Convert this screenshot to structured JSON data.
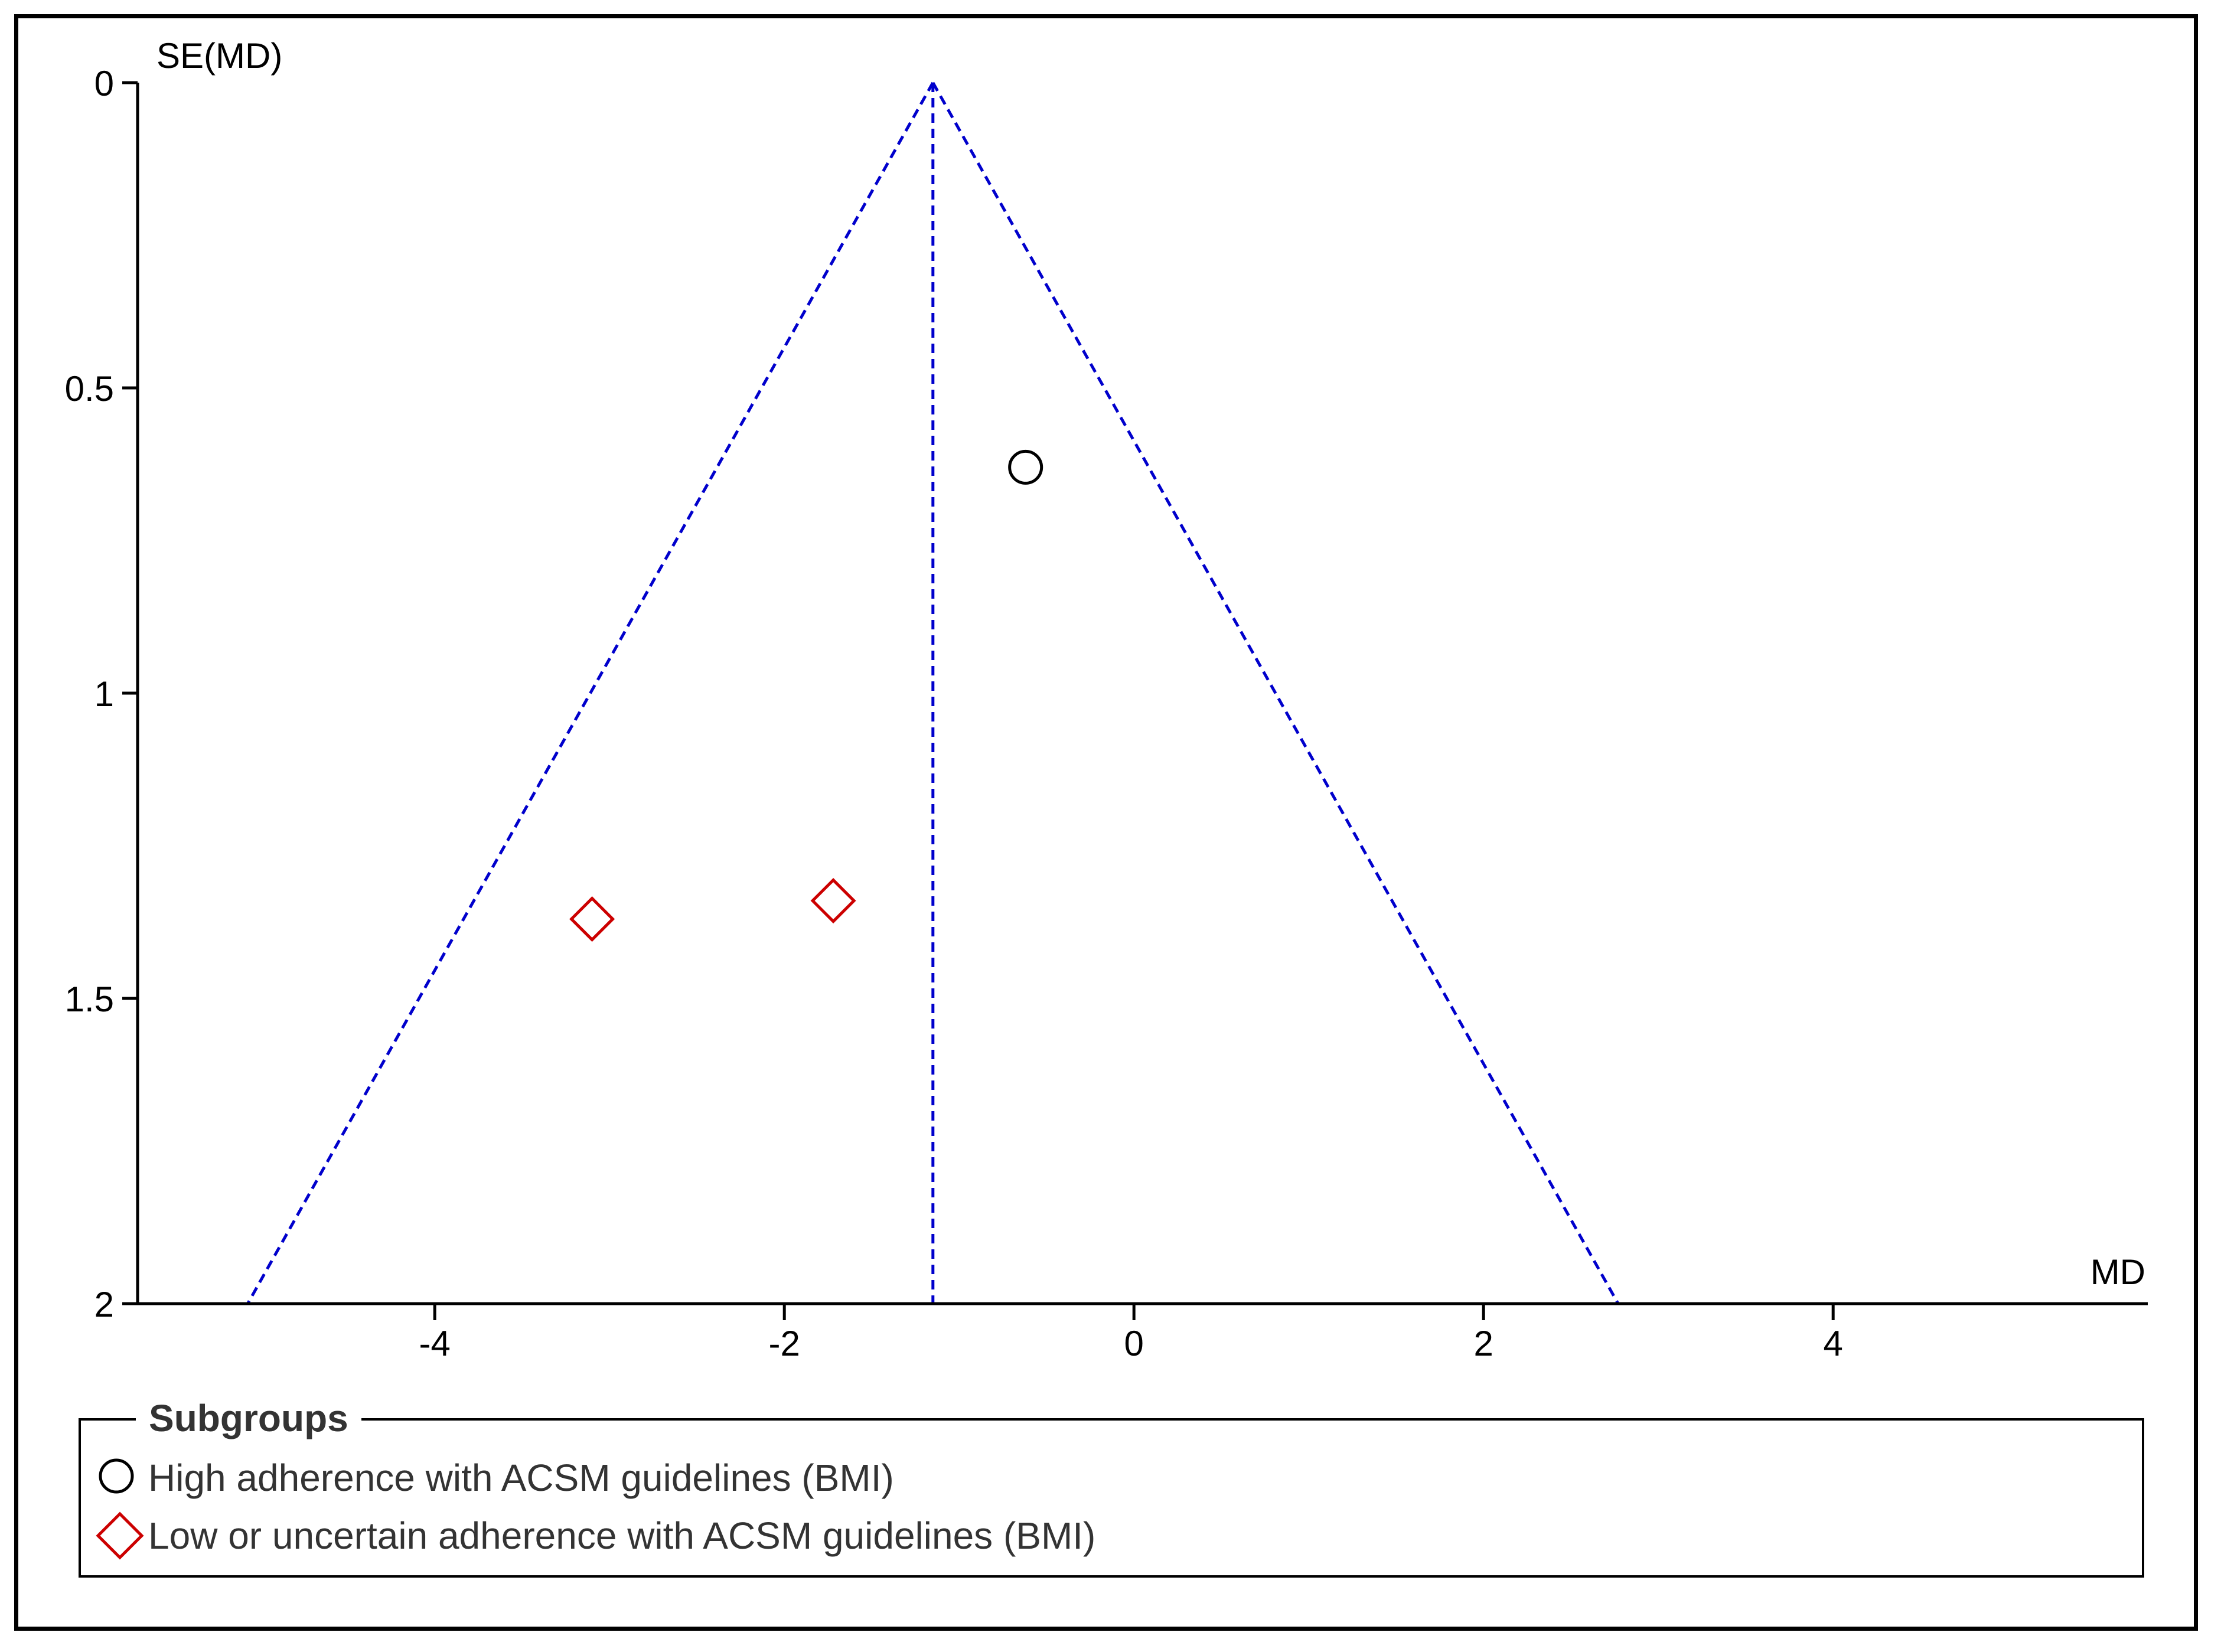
{
  "chart_data": {
    "type": "scatter",
    "title": "",
    "xlabel": "MD",
    "ylabel": "SE(MD)",
    "xlim": [
      -5.7,
      5.8
    ],
    "ylim": [
      0,
      2
    ],
    "y_inverted": true,
    "xticks": [
      -4,
      -2,
      0,
      2,
      4
    ],
    "yticks": [
      0,
      0.5,
      1,
      1.5,
      2
    ],
    "xtick_labels": [
      "-4",
      "-2",
      "0",
      "2",
      "4"
    ],
    "ytick_labels": [
      "0",
      "0.5",
      "1",
      "1.5",
      "2"
    ],
    "grid": false,
    "pooled_estimate": -1.15,
    "funnel_se_max": 2,
    "funnel_color": "#0000cc",
    "legend_title": "Subgroups",
    "legend_placement": "bottom",
    "series": [
      {
        "name": "High adherence with ACSM guidelines (BMI)",
        "marker": "circle",
        "color": "#000000",
        "points": [
          {
            "x": -0.62,
            "y": 0.63
          }
        ]
      },
      {
        "name": "Low or uncertain adherence with ACSM guidelines (BMI)",
        "marker": "diamond",
        "color": "#cc0000",
        "points": [
          {
            "x": -3.1,
            "y": 1.37
          },
          {
            "x": -1.72,
            "y": 1.34
          }
        ]
      }
    ]
  }
}
